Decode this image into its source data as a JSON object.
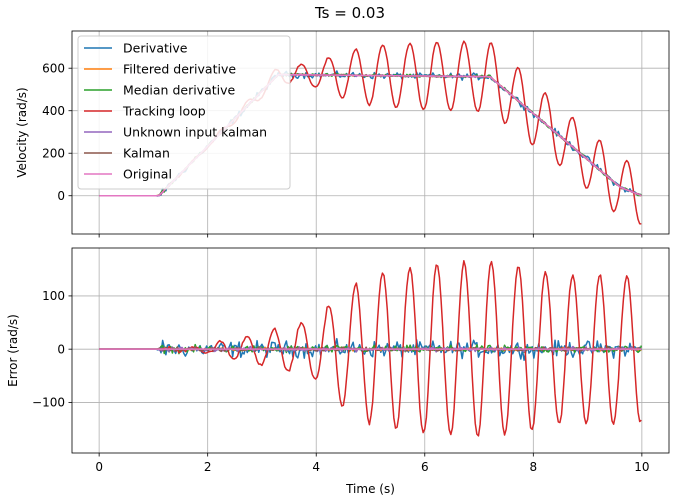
{
  "figure_title": "Ts = 0.03",
  "chart_data": [
    {
      "type": "line",
      "panel": "top",
      "title": "",
      "xlabel": "",
      "ylabel": "Velocity (rad/s)",
      "xlim": [
        -0.5,
        10.5
      ],
      "ylim": [
        -180,
        775
      ],
      "xticks": [
        0,
        2,
        4,
        6,
        8,
        10
      ],
      "xtick_labels_visible": false,
      "yticks": [
        0,
        200,
        400,
        600
      ],
      "grid": true,
      "legend": "top-left",
      "sample_period": 0.03,
      "reference_profile": [
        [
          0,
          0
        ],
        [
          1.1,
          0
        ],
        [
          3.3,
          570
        ],
        [
          7.2,
          560
        ],
        [
          9.6,
          40
        ],
        [
          10,
          0
        ]
      ],
      "series": [
        {
          "name": "Derivative",
          "color": "#1f77b4",
          "noise_amp": 22
        },
        {
          "name": "Filtered derivative",
          "color": "#ff7f0e",
          "noise_amp": 4
        },
        {
          "name": "Median derivative",
          "color": "#2ca02c",
          "noise_amp": 10
        },
        {
          "name": "Tracking loop",
          "color": "#d62728",
          "oscillation_points": [
            [
              1.1,
              0
            ],
            [
              2.0,
              8
            ],
            [
              3.0,
              30
            ],
            [
              3.6,
              45
            ],
            [
              4.0,
              60
            ],
            [
              4.5,
              110
            ],
            [
              5.0,
              140
            ],
            [
              5.5,
              150
            ],
            [
              6.0,
              160
            ],
            [
              6.5,
              160
            ],
            [
              7.0,
              165
            ],
            [
              7.5,
              160
            ],
            [
              8.0,
              150
            ],
            [
              8.5,
              140
            ],
            [
              9.0,
              140
            ],
            [
              9.5,
              140
            ],
            [
              10.0,
              140
            ]
          ],
          "oscillation_period": 0.5
        },
        {
          "name": "Unknown input kalman",
          "color": "#9467bd",
          "noise_amp": 6
        },
        {
          "name": "Kalman",
          "color": "#8c564b",
          "noise_amp": 5
        },
        {
          "name": "Original",
          "color": "#e377c2",
          "noise_amp": 0
        }
      ]
    },
    {
      "type": "line",
      "panel": "bottom",
      "title": "",
      "xlabel": "Time (s)",
      "ylabel": "Error (rad/s)",
      "xlim": [
        -0.5,
        10.5
      ],
      "ylim": [
        -195,
        190
      ],
      "xticks": [
        0,
        2,
        4,
        6,
        8,
        10
      ],
      "yticks": [
        -100,
        0,
        100
      ],
      "grid": true,
      "series": [
        {
          "name": "Derivative",
          "color": "#1f77b4",
          "noise_amp": 22
        },
        {
          "name": "Filtered derivative",
          "color": "#ff7f0e",
          "noise_amp": 4
        },
        {
          "name": "Median derivative",
          "color": "#2ca02c",
          "noise_amp": 10
        },
        {
          "name": "Tracking loop",
          "color": "#d62728"
        },
        {
          "name": "Unknown input kalman",
          "color": "#9467bd",
          "noise_amp": 6
        },
        {
          "name": "Kalman",
          "color": "#8c564b",
          "noise_amp": 5
        },
        {
          "name": "Original",
          "color": "#e377c2",
          "noise_amp": 0
        }
      ]
    }
  ]
}
